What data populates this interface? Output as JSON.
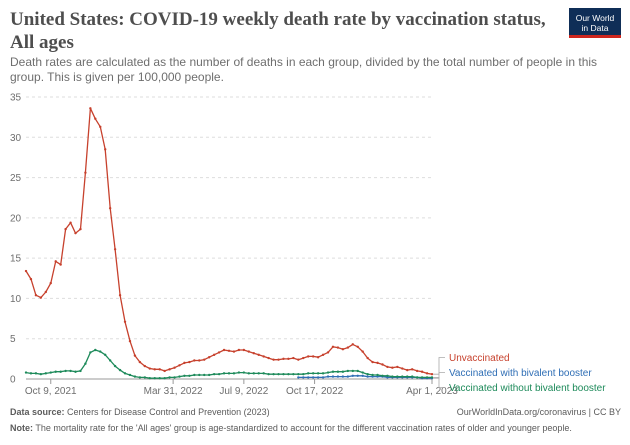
{
  "header": {
    "title": "United States: COVID-19 weekly death rate by vaccination status, All ages",
    "subtitle": "Death rates are calculated as the number of deaths in each group, divided by the total number of people in this group. This is given per 100,000 people.",
    "logo_line1": "Our World",
    "logo_line2": "in Data"
  },
  "footer": {
    "source_label": "Data source:",
    "source_text": "Centers for Disease Control and Prevention (2023)",
    "credit": "OurWorldInData.org/coronavirus | CC BY",
    "note_label": "Note:",
    "note_text": "The mortality rate for the 'All ages' group is age-standardized to account for the different vaccination rates of older and younger people."
  },
  "colors": {
    "unvaccinated": "#c7412d",
    "bivalent": "#2f6eb5",
    "without_bivalent": "#1d8a5a",
    "grid": "#dddddd"
  },
  "chart_data": {
    "type": "line",
    "title": "United States: COVID-19 weekly death rate by vaccination status, All ages",
    "ylim": [
      0,
      35
    ],
    "y_ticks": [
      0,
      5,
      10,
      15,
      20,
      25,
      30,
      35
    ],
    "x_tick_labels": [
      "Oct 9, 2021",
      "Mar 31, 2022",
      "Jul 9, 2022",
      "Oct 17, 2022",
      "Apr 1, 2023"
    ],
    "x_tick_dates": [
      "2021-10-09",
      "2022-03-31",
      "2022-07-09",
      "2022-10-17",
      "2023-04-01"
    ],
    "grid": true,
    "legend": "right",
    "series": [
      {
        "name": "Unvaccinated",
        "color_key": "unvaccinated",
        "points": [
          [
            "2021-09-04",
            13.4
          ],
          [
            "2021-09-11",
            12.4
          ],
          [
            "2021-09-18",
            10.4
          ],
          [
            "2021-09-25",
            10.1
          ],
          [
            "2021-10-02",
            10.8
          ],
          [
            "2021-10-09",
            11.9
          ],
          [
            "2021-10-16",
            14.6
          ],
          [
            "2021-10-23",
            14.2
          ],
          [
            "2021-10-30",
            18.6
          ],
          [
            "2021-11-06",
            19.4
          ],
          [
            "2021-11-13",
            18.1
          ],
          [
            "2021-11-20",
            18.6
          ],
          [
            "2021-11-27",
            25.6
          ],
          [
            "2021-12-04",
            33.6
          ],
          [
            "2021-12-11",
            32.3
          ],
          [
            "2021-12-18",
            31.3
          ],
          [
            "2021-12-25",
            28.5
          ],
          [
            "2022-01-01",
            21.2
          ],
          [
            "2022-01-08",
            16.1
          ],
          [
            "2022-01-15",
            10.4
          ],
          [
            "2022-01-22",
            7.1
          ],
          [
            "2022-01-29",
            4.7
          ],
          [
            "2022-02-05",
            2.9
          ],
          [
            "2022-02-12",
            2.1
          ],
          [
            "2022-02-19",
            1.6
          ],
          [
            "2022-02-26",
            1.3
          ],
          [
            "2022-03-05",
            1.2
          ],
          [
            "2022-03-12",
            1.2
          ],
          [
            "2022-03-19",
            1.0
          ],
          [
            "2022-03-26",
            1.2
          ],
          [
            "2022-04-02",
            1.4
          ],
          [
            "2022-04-09",
            1.7
          ],
          [
            "2022-04-16",
            2.0
          ],
          [
            "2022-04-23",
            2.1
          ],
          [
            "2022-04-30",
            2.3
          ],
          [
            "2022-05-07",
            2.3
          ],
          [
            "2022-05-14",
            2.4
          ],
          [
            "2022-05-21",
            2.7
          ],
          [
            "2022-05-28",
            3.0
          ],
          [
            "2022-06-04",
            3.3
          ],
          [
            "2022-06-11",
            3.6
          ],
          [
            "2022-06-18",
            3.5
          ],
          [
            "2022-06-25",
            3.4
          ],
          [
            "2022-07-02",
            3.6
          ],
          [
            "2022-07-09",
            3.6
          ],
          [
            "2022-07-16",
            3.4
          ],
          [
            "2022-07-23",
            3.2
          ],
          [
            "2022-07-30",
            3.0
          ],
          [
            "2022-08-06",
            2.8
          ],
          [
            "2022-08-13",
            2.6
          ],
          [
            "2022-08-20",
            2.4
          ],
          [
            "2022-08-27",
            2.4
          ],
          [
            "2022-09-03",
            2.5
          ],
          [
            "2022-09-10",
            2.5
          ],
          [
            "2022-09-17",
            2.6
          ],
          [
            "2022-09-24",
            2.4
          ],
          [
            "2022-10-01",
            2.6
          ],
          [
            "2022-10-08",
            2.8
          ],
          [
            "2022-10-15",
            2.8
          ],
          [
            "2022-10-22",
            2.7
          ],
          [
            "2022-10-29",
            3.0
          ],
          [
            "2022-11-05",
            3.3
          ],
          [
            "2022-11-12",
            4.0
          ],
          [
            "2022-11-19",
            3.9
          ],
          [
            "2022-11-26",
            3.7
          ],
          [
            "2022-12-03",
            3.9
          ],
          [
            "2022-12-10",
            4.3
          ],
          [
            "2022-12-17",
            4.0
          ],
          [
            "2022-12-24",
            3.4
          ],
          [
            "2022-12-31",
            2.6
          ],
          [
            "2023-01-07",
            2.1
          ],
          [
            "2023-01-14",
            2.0
          ],
          [
            "2023-01-21",
            1.8
          ],
          [
            "2023-01-28",
            1.5
          ],
          [
            "2023-02-04",
            1.4
          ],
          [
            "2023-02-11",
            1.5
          ],
          [
            "2023-02-18",
            1.3
          ],
          [
            "2023-02-25",
            1.1
          ],
          [
            "2023-03-04",
            1.2
          ],
          [
            "2023-03-11",
            1.0
          ],
          [
            "2023-03-18",
            0.9
          ],
          [
            "2023-03-25",
            0.7
          ],
          [
            "2023-04-01",
            0.6
          ]
        ]
      },
      {
        "name": "Vaccinated with bivalent booster",
        "color_key": "bivalent",
        "points": [
          [
            "2022-09-24",
            0.2
          ],
          [
            "2022-10-01",
            0.2
          ],
          [
            "2022-10-08",
            0.2
          ],
          [
            "2022-10-15",
            0.2
          ],
          [
            "2022-10-22",
            0.2
          ],
          [
            "2022-10-29",
            0.2
          ],
          [
            "2022-11-05",
            0.3
          ],
          [
            "2022-11-12",
            0.3
          ],
          [
            "2022-11-19",
            0.3
          ],
          [
            "2022-11-26",
            0.3
          ],
          [
            "2022-12-03",
            0.3
          ],
          [
            "2022-12-10",
            0.4
          ],
          [
            "2022-12-17",
            0.4
          ],
          [
            "2022-12-24",
            0.4
          ],
          [
            "2022-12-31",
            0.3
          ],
          [
            "2023-01-07",
            0.3
          ],
          [
            "2023-01-14",
            0.3
          ],
          [
            "2023-01-21",
            0.3
          ],
          [
            "2023-01-28",
            0.2
          ],
          [
            "2023-02-04",
            0.2
          ],
          [
            "2023-02-11",
            0.2
          ],
          [
            "2023-02-18",
            0.2
          ],
          [
            "2023-02-25",
            0.2
          ],
          [
            "2023-03-04",
            0.2
          ],
          [
            "2023-03-11",
            0.2
          ],
          [
            "2023-03-18",
            0.1
          ],
          [
            "2023-03-25",
            0.1
          ],
          [
            "2023-04-01",
            0.1
          ]
        ]
      },
      {
        "name": "Vaccinated without bivalent booster",
        "color_key": "without_bivalent",
        "points": [
          [
            "2021-09-04",
            0.8
          ],
          [
            "2021-09-11",
            0.7
          ],
          [
            "2021-09-18",
            0.7
          ],
          [
            "2021-09-25",
            0.6
          ],
          [
            "2021-10-02",
            0.7
          ],
          [
            "2021-10-09",
            0.8
          ],
          [
            "2021-10-16",
            0.9
          ],
          [
            "2021-10-23",
            0.9
          ],
          [
            "2021-10-30",
            1.0
          ],
          [
            "2021-11-06",
            1.0
          ],
          [
            "2021-11-13",
            0.9
          ],
          [
            "2021-11-20",
            1.0
          ],
          [
            "2021-11-27",
            1.9
          ],
          [
            "2021-12-04",
            3.3
          ],
          [
            "2021-12-11",
            3.6
          ],
          [
            "2021-12-18",
            3.4
          ],
          [
            "2021-12-25",
            3.0
          ],
          [
            "2022-01-01",
            2.3
          ],
          [
            "2022-01-08",
            1.6
          ],
          [
            "2022-01-15",
            1.1
          ],
          [
            "2022-01-22",
            0.7
          ],
          [
            "2022-01-29",
            0.5
          ],
          [
            "2022-02-05",
            0.3
          ],
          [
            "2022-02-12",
            0.2
          ],
          [
            "2022-02-19",
            0.2
          ],
          [
            "2022-02-26",
            0.1
          ],
          [
            "2022-03-05",
            0.1
          ],
          [
            "2022-03-12",
            0.1
          ],
          [
            "2022-03-19",
            0.1
          ],
          [
            "2022-03-26",
            0.2
          ],
          [
            "2022-04-02",
            0.2
          ],
          [
            "2022-04-09",
            0.3
          ],
          [
            "2022-04-16",
            0.4
          ],
          [
            "2022-04-23",
            0.4
          ],
          [
            "2022-04-30",
            0.5
          ],
          [
            "2022-05-07",
            0.5
          ],
          [
            "2022-05-14",
            0.5
          ],
          [
            "2022-05-21",
            0.5
          ],
          [
            "2022-05-28",
            0.6
          ],
          [
            "2022-06-04",
            0.6
          ],
          [
            "2022-06-11",
            0.7
          ],
          [
            "2022-06-18",
            0.7
          ],
          [
            "2022-06-25",
            0.7
          ],
          [
            "2022-07-02",
            0.8
          ],
          [
            "2022-07-09",
            0.8
          ],
          [
            "2022-07-16",
            0.7
          ],
          [
            "2022-07-23",
            0.7
          ],
          [
            "2022-07-30",
            0.7
          ],
          [
            "2022-08-06",
            0.7
          ],
          [
            "2022-08-13",
            0.6
          ],
          [
            "2022-08-20",
            0.6
          ],
          [
            "2022-08-27",
            0.6
          ],
          [
            "2022-09-03",
            0.6
          ],
          [
            "2022-09-10",
            0.6
          ],
          [
            "2022-09-17",
            0.6
          ],
          [
            "2022-09-24",
            0.6
          ],
          [
            "2022-10-01",
            0.6
          ],
          [
            "2022-10-08",
            0.7
          ],
          [
            "2022-10-15",
            0.7
          ],
          [
            "2022-10-22",
            0.7
          ],
          [
            "2022-10-29",
            0.7
          ],
          [
            "2022-11-05",
            0.8
          ],
          [
            "2022-11-12",
            0.9
          ],
          [
            "2022-11-19",
            0.9
          ],
          [
            "2022-11-26",
            0.9
          ],
          [
            "2022-12-03",
            1.0
          ],
          [
            "2022-12-10",
            1.0
          ],
          [
            "2022-12-17",
            1.0
          ],
          [
            "2022-12-24",
            0.8
          ],
          [
            "2022-12-31",
            0.6
          ],
          [
            "2023-01-07",
            0.5
          ],
          [
            "2023-01-14",
            0.5
          ],
          [
            "2023-01-21",
            0.4
          ],
          [
            "2023-01-28",
            0.4
          ],
          [
            "2023-02-04",
            0.3
          ],
          [
            "2023-02-11",
            0.3
          ],
          [
            "2023-02-18",
            0.3
          ],
          [
            "2023-02-25",
            0.3
          ],
          [
            "2023-03-04",
            0.3
          ],
          [
            "2023-03-11",
            0.2
          ],
          [
            "2023-03-18",
            0.2
          ],
          [
            "2023-03-25",
            0.2
          ],
          [
            "2023-04-01",
            0.2
          ]
        ]
      }
    ]
  }
}
